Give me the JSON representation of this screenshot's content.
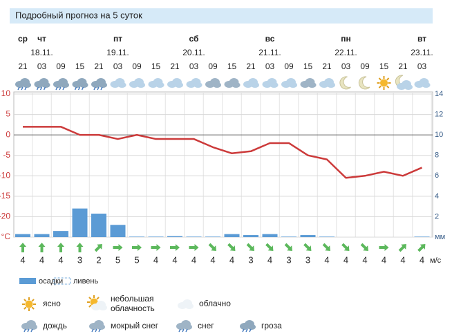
{
  "chart_data": {
    "type": "line",
    "title": "Подробный прогноз на 5 суток",
    "categories": [
      "21",
      "03",
      "09",
      "15",
      "21",
      "03",
      "09",
      "15",
      "21",
      "03",
      "09",
      "15",
      "21",
      "03",
      "09",
      "15",
      "21",
      "03",
      "09",
      "15",
      "21",
      "03"
    ],
    "day_labels": [
      "ср",
      "чт",
      null,
      null,
      null,
      "пт",
      null,
      null,
      null,
      "сб",
      null,
      null,
      null,
      "вс",
      null,
      null,
      null,
      "пн",
      null,
      null,
      null,
      "вт"
    ],
    "date_labels": [
      null,
      "18.11.",
      null,
      null,
      null,
      "19.11.",
      null,
      null,
      null,
      "20.11.",
      null,
      null,
      null,
      "21.11.",
      null,
      null,
      null,
      "22.11.",
      null,
      null,
      null,
      "23.11."
    ],
    "series": [
      {
        "color": "#cc3a3a",
        "values": [
          2,
          2,
          2,
          0,
          0,
          -1,
          0,
          -1,
          -1,
          -1,
          -3,
          -4.5,
          -4,
          -2,
          -2,
          -5,
          -6,
          -10.5,
          -10,
          -9,
          -10,
          -8
        ]
      },
      {
        "name": "осадки",
        "type": "bar",
        "axis": "y2",
        "color": "#5b9bd5",
        "values": [
          0.3,
          0.3,
          0.6,
          2.8,
          2.3,
          1.2,
          0.05,
          0.05,
          0.1,
          0.05,
          0.05,
          0.3,
          0.2,
          0.3,
          0.05,
          0.2,
          0.05,
          0,
          0,
          0,
          0,
          0.05
        ]
      }
    ],
    "shower_label": "ливень",
    "ylim": [
      -25,
      10
    ],
    "yticks": [
      {
        "value": -25,
        "label": "°C"
      },
      -20,
      -15,
      -10,
      -5,
      0,
      5,
      10
    ],
    "y2lim": [
      0,
      14
    ],
    "y2ticks": [
      {
        "value": 0,
        "label": "мм"
      },
      2,
      4,
      6,
      8,
      10,
      12,
      14
    ],
    "grid": true,
    "wind": {
      "unit": "м/с",
      "values": [
        4,
        4,
        4,
        3,
        2,
        5,
        5,
        4,
        4,
        4,
        4,
        4,
        3,
        4,
        3,
        3,
        4,
        4,
        4,
        4,
        4,
        4
      ],
      "directions": [
        0,
        0,
        0,
        0,
        45,
        90,
        90,
        90,
        90,
        90,
        135,
        135,
        135,
        135,
        135,
        135,
        135,
        135,
        135,
        90,
        45,
        45
      ],
      "color": "#5cb85c"
    },
    "conditions_legend": [
      [
        "ясно"
      ],
      [
        "небольшая",
        "облачность"
      ],
      [
        "облачно"
      ],
      [
        "дождь"
      ],
      [
        "мокрый снег"
      ],
      [
        "снег"
      ],
      [
        "гроза"
      ]
    ]
  }
}
